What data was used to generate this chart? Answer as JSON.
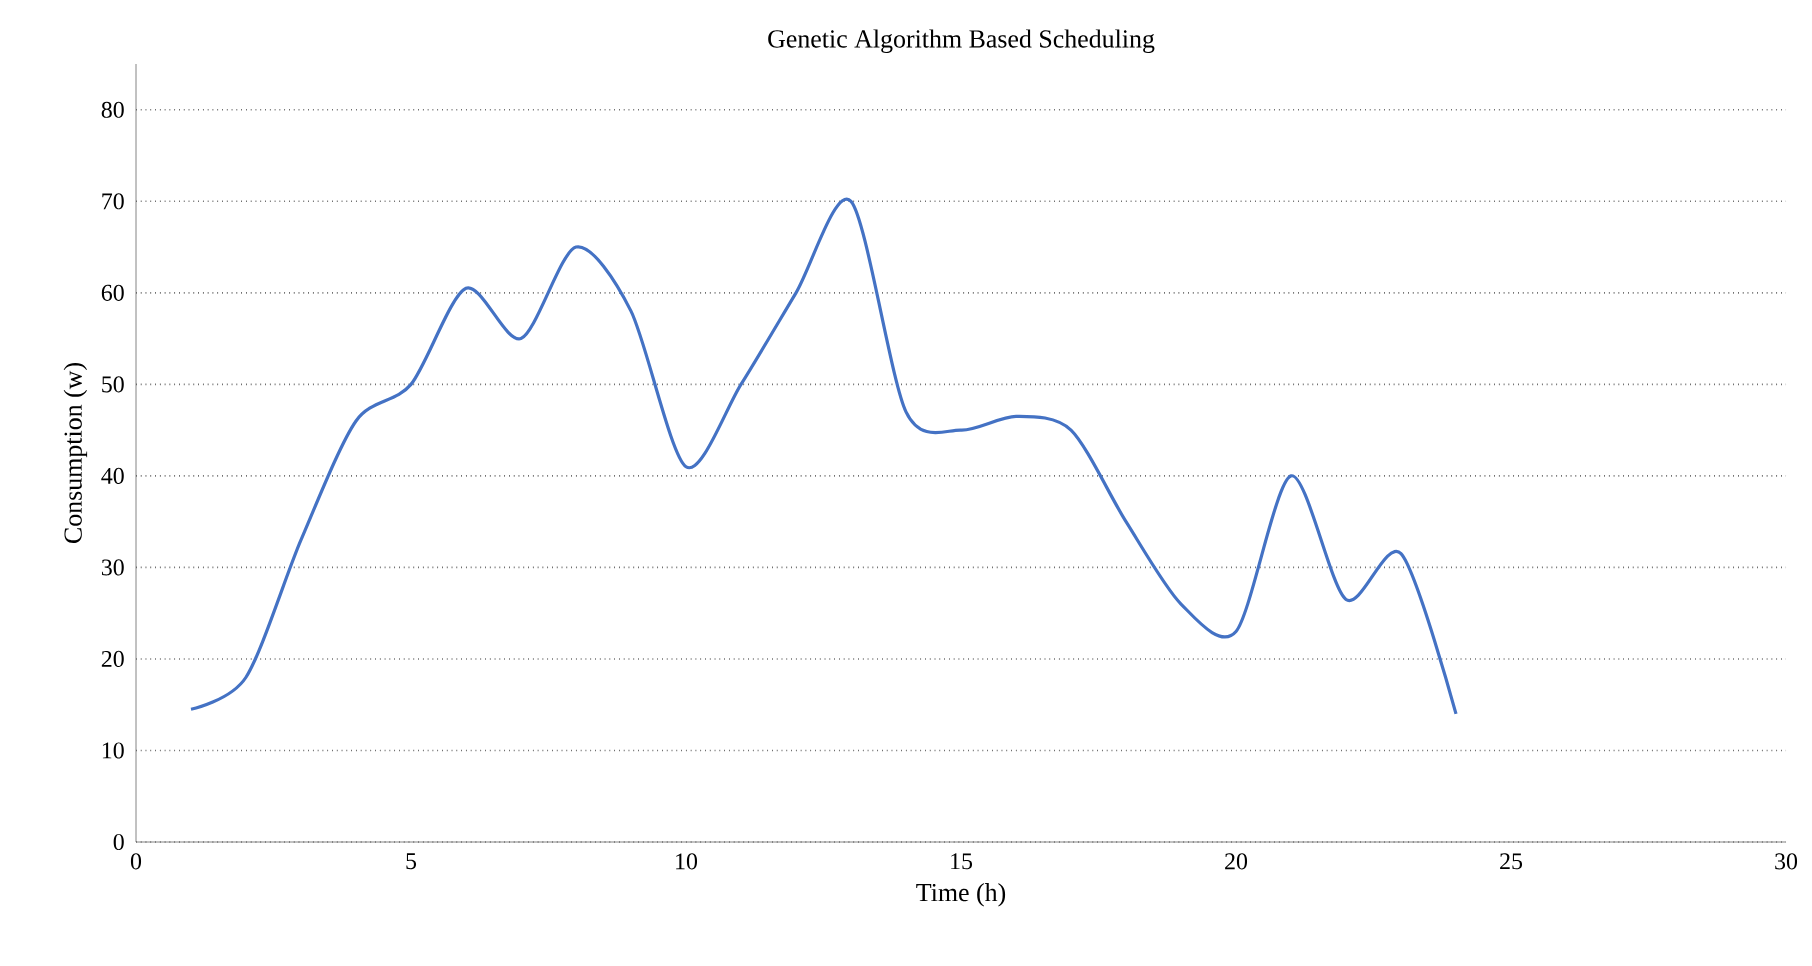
{
  "chart_data": {
    "type": "line",
    "title": "Genetic Algorithm Based Scheduling",
    "xlabel": "Time (h)",
    "ylabel": "Consumption (w)",
    "x": [
      1,
      2,
      3,
      4,
      5,
      6,
      7,
      8,
      9,
      10,
      11,
      12,
      13,
      14,
      15,
      16,
      17,
      18,
      19,
      20,
      21,
      22,
      23,
      24
    ],
    "series": [
      {
        "color": "#4472c4",
        "values": [
          14.5,
          18,
          33,
          46,
          50,
          60.5,
          55,
          65,
          58,
          41,
          50,
          60,
          70,
          47,
          45,
          46.5,
          45,
          35,
          26,
          23,
          40,
          26.5,
          31.5,
          14
        ]
      }
    ],
    "xlim": [
      0,
      30
    ],
    "xticks": [
      0,
      5,
      10,
      15,
      20,
      25,
      30
    ],
    "ylim": [
      0,
      85
    ],
    "yticks": [
      0,
      10,
      20,
      30,
      40,
      50,
      60,
      70,
      80
    ],
    "grid": "y",
    "marker": "none",
    "line_style": "solid"
  }
}
